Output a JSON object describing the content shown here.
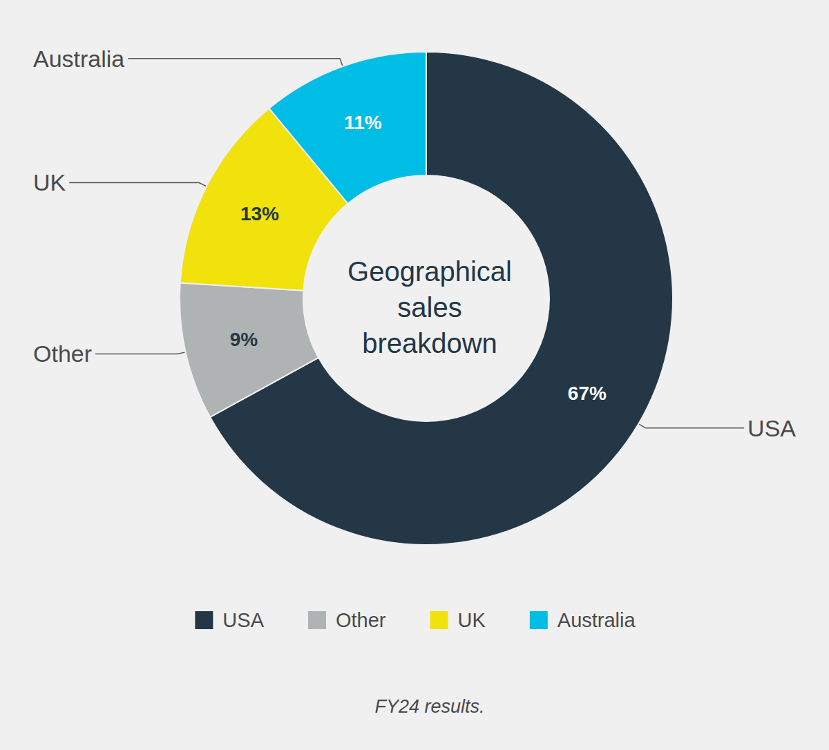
{
  "chart_data": {
    "type": "pie",
    "title": "Geographical sales breakdown",
    "caption": "FY24 results.",
    "categories": [
      "USA",
      "Other",
      "UK",
      "Australia"
    ],
    "values": [
      67,
      9,
      13,
      11
    ],
    "value_labels": [
      "67%",
      "9%",
      "13%",
      "11%"
    ],
    "colors": [
      "#233746",
      "#b0b3b4",
      "#f0e20a",
      "#00bde6"
    ],
    "data_labels": true,
    "legend": "bottom"
  }
}
